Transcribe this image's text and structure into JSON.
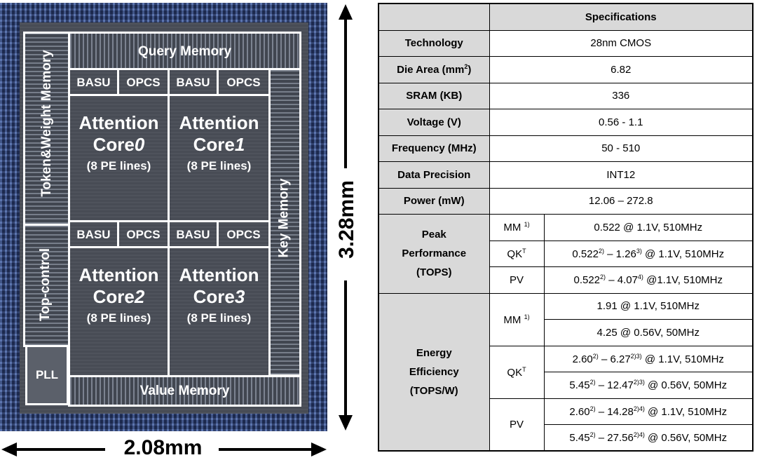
{
  "die": {
    "blocks": {
      "query_memory": "Query Memory",
      "value_memory": "Value Memory",
      "key_memory": "Key Memory",
      "token_weight_memory": "Token&Weight Memory",
      "top_control": "Top-control",
      "pll": "PLL"
    },
    "cores": [
      {
        "basu": "BASU",
        "opcs": "OPCS",
        "title_prefix": "Attention",
        "title_core": "Core",
        "index": "0",
        "sub": "(8 PE lines)"
      },
      {
        "basu": "BASU",
        "opcs": "OPCS",
        "title_prefix": "Attention",
        "title_core": "Core",
        "index": "1",
        "sub": "(8 PE lines)"
      },
      {
        "basu": "BASU",
        "opcs": "OPCS",
        "title_prefix": "Attention",
        "title_core": "Core",
        "index": "2",
        "sub": "(8 PE lines)"
      },
      {
        "basu": "BASU",
        "opcs": "OPCS",
        "title_prefix": "Attention",
        "title_core": "Core",
        "index": "3",
        "sub": "(8 PE lines)"
      }
    ],
    "width_label": "2.08mm",
    "height_label": "3.28mm"
  },
  "table": {
    "header": "Specifications",
    "technology": {
      "label": "Technology",
      "value": "28nm CMOS"
    },
    "die_area": {
      "label": "Die Area (mm",
      "sup": "2",
      "label_end": ")",
      "value": "6.82"
    },
    "sram": {
      "label": "SRAM (KB)",
      "value": "336"
    },
    "voltage": {
      "label": "Voltage (V)",
      "value": "0.56 - 1.1"
    },
    "frequency": {
      "label": "Frequency (MHz)",
      "value": "50 - 510"
    },
    "precision": {
      "label": "Data Precision",
      "value": "INT12"
    },
    "power": {
      "label": "Power (mW)",
      "value": "12.06 – 272.8"
    },
    "peak": {
      "label_1": "Peak",
      "label_2": "Performance",
      "label_3": "(TOPS)",
      "mm": {
        "label": "MM",
        "sup": "1)",
        "value": "0.522 @ 1.1V, 510MHz"
      },
      "qk": {
        "label": "QK",
        "sup": "T",
        "v1": "0.522",
        "s1": "2)",
        "mid": " – 1.26",
        "s2": "3)",
        "tail": " @ 1.1V, 510MHz"
      },
      "pv": {
        "label": "PV",
        "v1": "0.522",
        "s1": "2)",
        "mid": " – 4.07",
        "s2": "4)",
        "tail": " @1.1V, 510MHz"
      }
    },
    "energy": {
      "label_1": "Energy",
      "label_2": "Efficiency",
      "label_3": "(TOPS/W)",
      "mm": {
        "label": "MM",
        "sup": "1)",
        "r1": "1.91 @ 1.1V, 510MHz",
        "r2": "4.25 @ 0.56V, 50MHz"
      },
      "qk": {
        "label": "QK",
        "sup": "T",
        "r1": {
          "v1": "2.60",
          "s1": "2)",
          "mid": " – 6.27",
          "s2": "2)3)",
          "tail": " @ 1.1V, 510MHz"
        },
        "r2": {
          "v1": "5.45",
          "s1": "2)",
          "mid": " – 12.47",
          "s2": "2)3)",
          "tail": " @ 0.56V, 50MHz"
        }
      },
      "pv": {
        "label": "PV",
        "r1": {
          "v1": "2.60",
          "s1": "2)",
          "mid": " – 14.28",
          "s2": "2)4)",
          "tail": " @ 1.1V, 510MHz"
        },
        "r2": {
          "v1": "5.45",
          "s1": "2)",
          "mid": " – 27.56",
          "s2": "2)4)",
          "tail": " @ 0.56V, 50MHz"
        }
      }
    }
  }
}
